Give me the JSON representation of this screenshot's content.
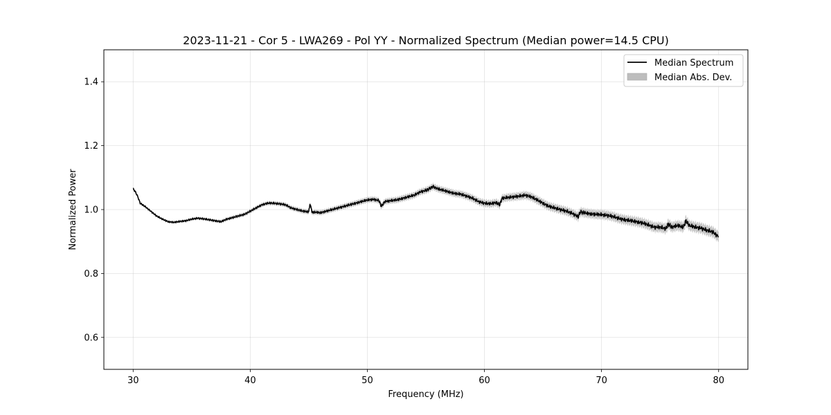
{
  "chart_data": {
    "type": "line",
    "title": "2023-11-21 - Cor 5 - LWA269 - Pol YY - Normalized Spectrum (Median power=14.5 CPU)",
    "xlabel": "Frequency (MHz)",
    "ylabel": "Normalized Power",
    "xlim": [
      27.5,
      82.5
    ],
    "ylim": [
      0.5,
      1.5
    ],
    "xticks": [
      30,
      40,
      50,
      60,
      70,
      80
    ],
    "yticks": [
      0.6,
      0.8,
      1.0,
      1.2,
      1.4
    ],
    "xtick_labels": [
      "30",
      "40",
      "50",
      "60",
      "70",
      "80"
    ],
    "ytick_labels": [
      "0.6",
      "0.8",
      "1.0",
      "1.2",
      "1.4"
    ],
    "grid": true,
    "legend_position": "top-right",
    "legend": [
      "Median Spectrum",
      "Median Abs. Dev."
    ],
    "series": [
      {
        "name": "Median Spectrum",
        "color": "#000000",
        "x": [
          30.0,
          30.2,
          30.4,
          30.6,
          31.0,
          31.5,
          32.0,
          32.5,
          33.0,
          33.5,
          34.0,
          34.5,
          35.0,
          35.5,
          36.0,
          36.5,
          37.0,
          37.5,
          38.0,
          38.5,
          39.0,
          39.5,
          40.0,
          40.5,
          41.0,
          41.5,
          42.0,
          42.5,
          43.0,
          43.5,
          44.0,
          44.5,
          45.0,
          45.1,
          45.3,
          45.5,
          46.0,
          46.5,
          47.0,
          47.5,
          48.0,
          48.5,
          49.0,
          49.5,
          50.0,
          50.5,
          51.0,
          51.2,
          51.5,
          52.0,
          52.5,
          53.0,
          53.5,
          54.0,
          54.5,
          55.0,
          55.3,
          55.6,
          56.0,
          56.5,
          57.0,
          57.5,
          58.0,
          58.5,
          59.0,
          59.5,
          60.0,
          60.5,
          61.0,
          61.3,
          61.5,
          62.0,
          62.5,
          63.0,
          63.5,
          64.0,
          64.5,
          65.0,
          65.5,
          66.0,
          66.5,
          67.0,
          67.5,
          68.0,
          68.2,
          68.5,
          69.0,
          69.5,
          70.0,
          70.5,
          71.0,
          71.5,
          72.0,
          72.5,
          73.0,
          73.5,
          74.0,
          74.5,
          75.0,
          75.5,
          75.7,
          76.0,
          76.5,
          77.0,
          77.2,
          77.5,
          78.0,
          78.5,
          79.0,
          79.5,
          80.0
        ],
        "values": [
          1.065,
          1.055,
          1.04,
          1.02,
          1.01,
          0.995,
          0.98,
          0.97,
          0.962,
          0.96,
          0.963,
          0.965,
          0.97,
          0.973,
          0.971,
          0.968,
          0.965,
          0.962,
          0.97,
          0.975,
          0.98,
          0.985,
          0.995,
          1.005,
          1.015,
          1.02,
          1.02,
          1.018,
          1.015,
          1.005,
          1.0,
          0.995,
          0.993,
          1.018,
          0.99,
          0.992,
          0.99,
          0.995,
          1.0,
          1.005,
          1.01,
          1.015,
          1.02,
          1.025,
          1.03,
          1.032,
          1.028,
          1.01,
          1.025,
          1.028,
          1.03,
          1.035,
          1.04,
          1.045,
          1.055,
          1.06,
          1.065,
          1.072,
          1.065,
          1.06,
          1.055,
          1.05,
          1.048,
          1.042,
          1.035,
          1.025,
          1.02,
          1.018,
          1.022,
          1.015,
          1.035,
          1.038,
          1.04,
          1.042,
          1.045,
          1.04,
          1.03,
          1.02,
          1.01,
          1.005,
          1.0,
          0.995,
          0.988,
          0.978,
          0.993,
          0.99,
          0.987,
          0.985,
          0.984,
          0.982,
          0.978,
          0.972,
          0.968,
          0.965,
          0.962,
          0.958,
          0.952,
          0.945,
          0.945,
          0.94,
          0.955,
          0.945,
          0.95,
          0.945,
          0.965,
          0.95,
          0.945,
          0.942,
          0.935,
          0.93,
          0.915
        ]
      }
    ],
    "band": {
      "name": "Median Abs. Dev.",
      "color": "#bdbdbd",
      "mad_start": 0.003,
      "mad_end": 0.016
    }
  }
}
